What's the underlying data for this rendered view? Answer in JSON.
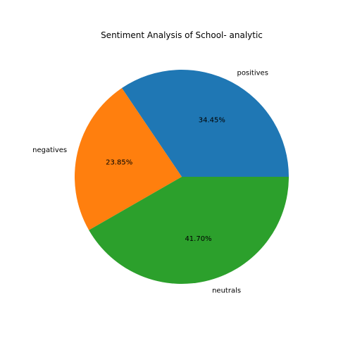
{
  "chart_data": {
    "type": "pie",
    "title": "Sentiment Analysis of School- analytic",
    "categories": [
      "positives",
      "negatives",
      "neutrals"
    ],
    "values": [
      34.45,
      23.85,
      41.7
    ],
    "value_labels": [
      "34.45%",
      "23.85%",
      "41.70%"
    ],
    "colors": [
      "#1f77b4",
      "#ff7f0e",
      "#2ca02c"
    ],
    "start_angle": 0,
    "direction": "counterclockwise"
  }
}
